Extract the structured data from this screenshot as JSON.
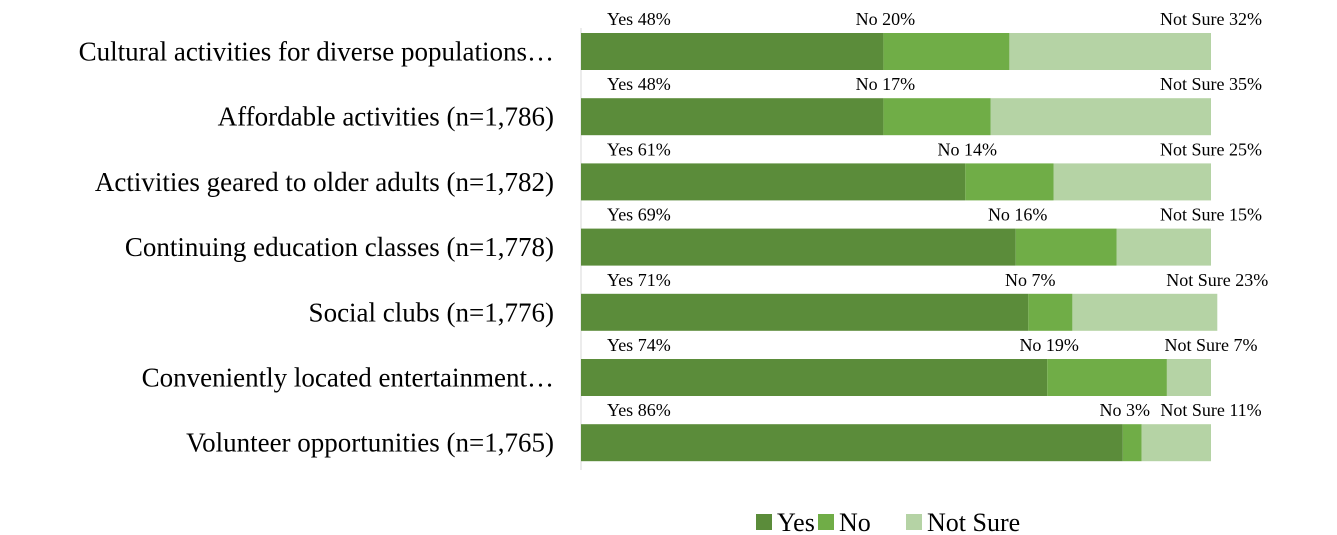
{
  "chart_data": {
    "type": "bar",
    "orientation": "horizontal",
    "stacked": true,
    "title": "",
    "xlabel": "",
    "ylabel": "",
    "xlim": [
      0,
      100
    ],
    "grid": false,
    "legend_position": "bottom",
    "categories": [
      "Cultural activities for diverse populations…",
      "Affordable activities (n=1,786)",
      "Activities geared to older adults (n=1,782)",
      "Continuing education classes (n=1,778)",
      "Social clubs (n=1,776)",
      "Conveniently located entertainment…",
      "Volunteer opportunities (n=1,765)"
    ],
    "series": [
      {
        "name": "Yes",
        "color": "#5b8c3a",
        "values": [
          48,
          48,
          61,
          69,
          71,
          74,
          86
        ],
        "labels": [
          "Yes 48%",
          "Yes 48%",
          "Yes 61%",
          "Yes 69%",
          "Yes 71%",
          "Yes 74%",
          "Yes 86%"
        ]
      },
      {
        "name": "No",
        "color": "#70ad47",
        "values": [
          20,
          17,
          14,
          16,
          7,
          19,
          3
        ],
        "labels": [
          "No 20%",
          "No 17%",
          "No 14%",
          "No 16%",
          "No 7%",
          "No 19%",
          "No 3%"
        ]
      },
      {
        "name": "Not Sure",
        "color": "#b5d3a5",
        "values": [
          32,
          35,
          25,
          15,
          23,
          7,
          11
        ],
        "labels": [
          "Not Sure 32%",
          "Not Sure 35%",
          "Not Sure 25%",
          "Not Sure 15%",
          "Not Sure 23%",
          "Not Sure 7%",
          "Not Sure 11%"
        ]
      }
    ]
  }
}
